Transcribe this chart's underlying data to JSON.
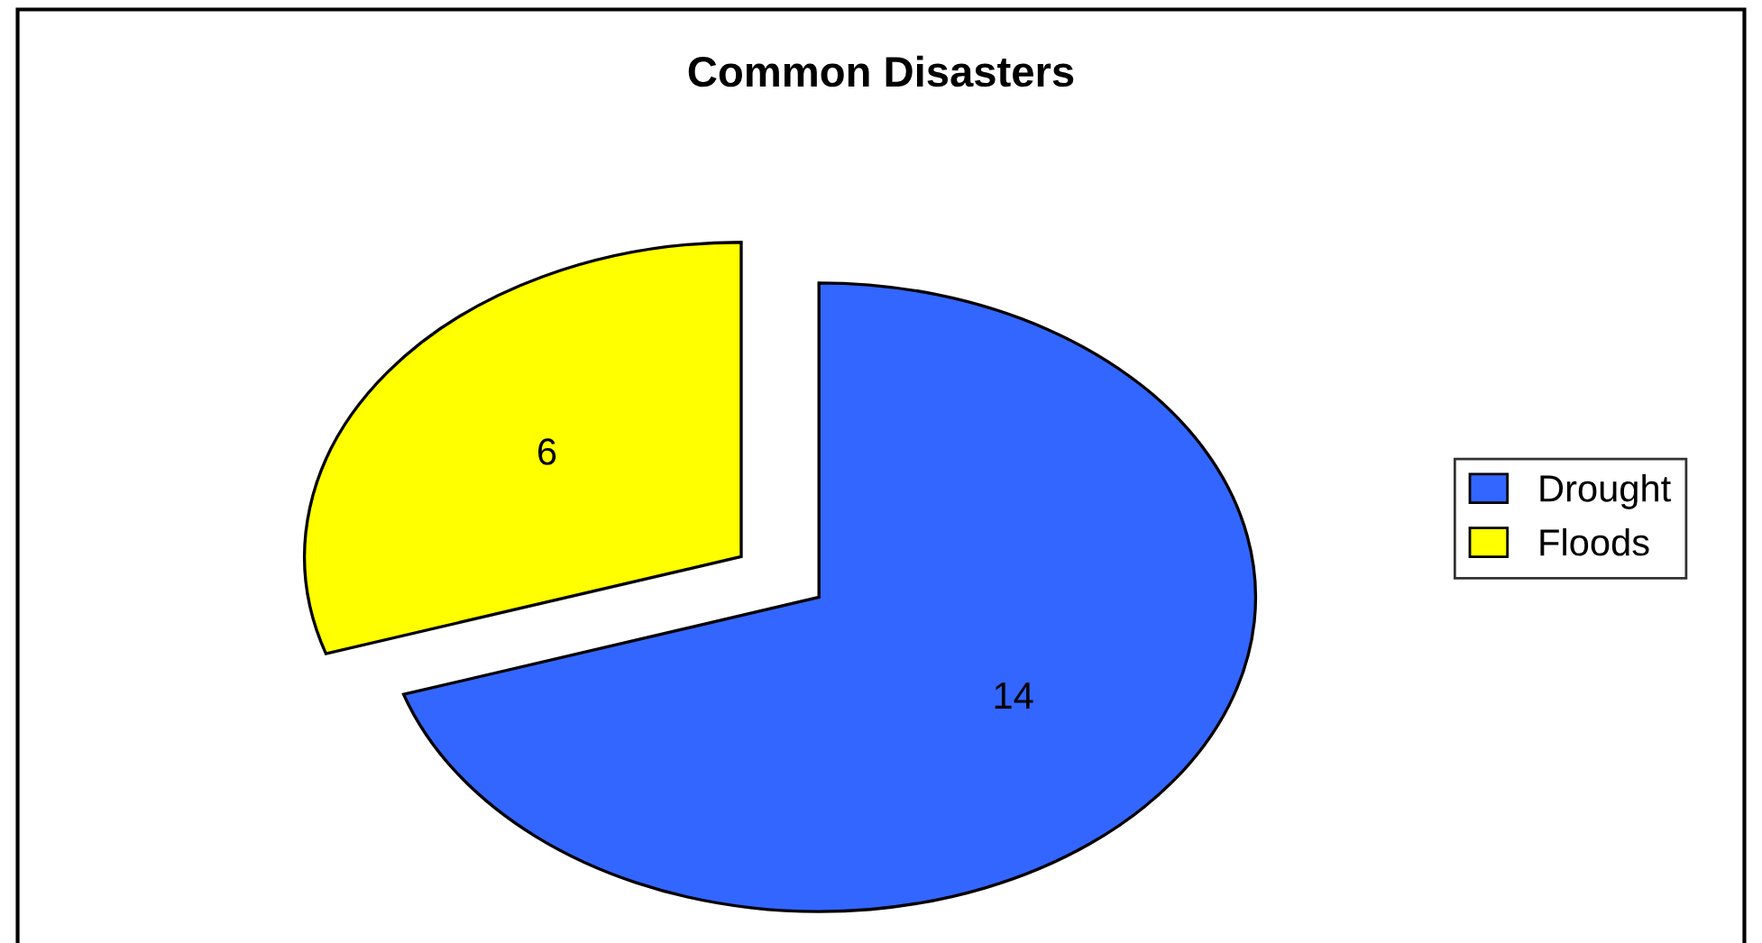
{
  "chart_data": {
    "type": "pie",
    "title": "Common Disasters",
    "categories": [
      "Drought",
      "Floods"
    ],
    "values": [
      14,
      6
    ],
    "colors": [
      "#3366ff",
      "#ffff00"
    ],
    "data_labels": true,
    "legend": "right"
  }
}
